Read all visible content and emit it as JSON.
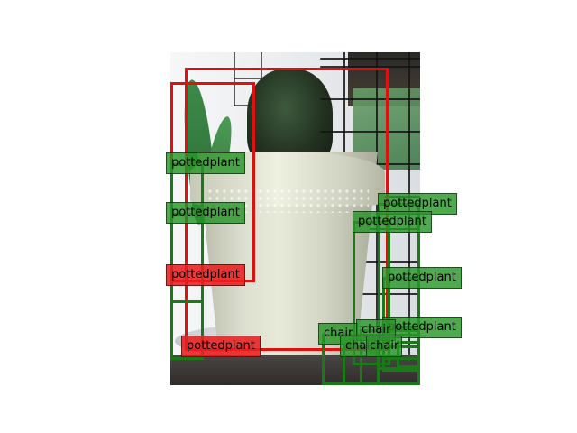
{
  "photo": {
    "description_icon": "potted-cactus-photo"
  },
  "colors": {
    "prediction": "#1a7a1a",
    "ground_truth": "#e01010"
  },
  "detections": [
    {
      "label": "pottedplant",
      "kind": "gt"
    },
    {
      "label": "pottedplant",
      "kind": "gt"
    },
    {
      "label": "pottedplant",
      "kind": "pred"
    },
    {
      "label": "pottedplant",
      "kind": "pred"
    },
    {
      "label": "pottedplant",
      "kind": "pred"
    },
    {
      "label": "pottedplant",
      "kind": "pred"
    },
    {
      "label": "pottedplant",
      "kind": "pred"
    },
    {
      "label": "pottedplant",
      "kind": "pred"
    },
    {
      "label": "chair",
      "kind": "pred"
    },
    {
      "label": "chair",
      "kind": "pred"
    },
    {
      "label": "chair",
      "kind": "pred"
    },
    {
      "label": "chair",
      "kind": "pred"
    }
  ]
}
